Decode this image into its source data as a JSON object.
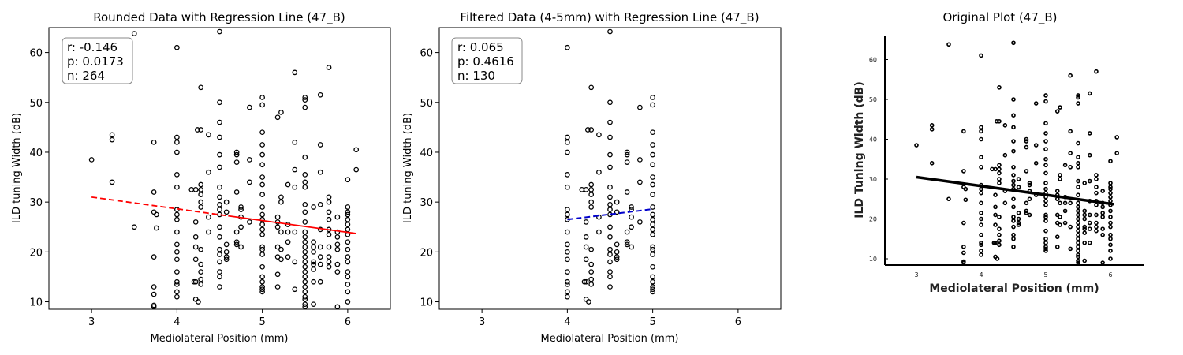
{
  "chart_data": [
    {
      "type": "scatter",
      "title": "Rounded Data with Regression Line (47_B)",
      "xlabel": "Mediolateral Position (mm)",
      "ylabel": "ILD tuning Width (dB)",
      "xlim": [
        2.5,
        6.5
      ],
      "ylim": [
        8.5,
        65
      ],
      "xticks": [
        3,
        4,
        5,
        6
      ],
      "yticks": [
        10,
        20,
        30,
        40,
        50,
        60
      ],
      "grid": false,
      "stats": [
        "r: -0.146",
        "p: 0.0173",
        "n: 264"
      ],
      "regression": {
        "x": [
          3,
          6.1
        ],
        "y": [
          31.0,
          23.7
        ],
        "color": "#ff0000",
        "style": "dashed-then-solid"
      },
      "points": [
        [
          3.0,
          38.5
        ],
        [
          3.24,
          43.5
        ],
        [
          3.24,
          42.5
        ],
        [
          3.24,
          34.0
        ],
        [
          3.5,
          63.8
        ],
        [
          3.5,
          25.0
        ],
        [
          3.73,
          42.0
        ],
        [
          3.73,
          32.0
        ],
        [
          3.73,
          28.0
        ],
        [
          3.73,
          19.0
        ],
        [
          3.73,
          13.0
        ],
        [
          3.73,
          11.5
        ],
        [
          3.73,
          9.3
        ],
        [
          3.73,
          9.0
        ],
        [
          3.76,
          27.5
        ],
        [
          3.76,
          24.8
        ],
        [
          4.0,
          61.0
        ],
        [
          4.0,
          43.0
        ],
        [
          4.0,
          42.0
        ],
        [
          4.0,
          40.0
        ],
        [
          4.0,
          35.5
        ],
        [
          4.0,
          33.0
        ],
        [
          4.0,
          28.5
        ],
        [
          4.0,
          27.5
        ],
        [
          4.0,
          26.5
        ],
        [
          4.0,
          24.0
        ],
        [
          4.0,
          21.5
        ],
        [
          4.0,
          20.0
        ],
        [
          4.0,
          18.5
        ],
        [
          4.0,
          16.0
        ],
        [
          4.0,
          14.0
        ],
        [
          4.0,
          13.5
        ],
        [
          4.0,
          12.0
        ],
        [
          4.0,
          11.0
        ],
        [
          4.17,
          32.5
        ],
        [
          4.2,
          14.0
        ],
        [
          4.22,
          32.5
        ],
        [
          4.22,
          26.0
        ],
        [
          4.22,
          23.0
        ],
        [
          4.22,
          21.0
        ],
        [
          4.22,
          18.5
        ],
        [
          4.22,
          14.0
        ],
        [
          4.22,
          10.5
        ],
        [
          4.24,
          44.5
        ],
        [
          4.25,
          10.0
        ],
        [
          4.28,
          53.0
        ],
        [
          4.28,
          44.5
        ],
        [
          4.28,
          33.5
        ],
        [
          4.28,
          32.5
        ],
        [
          4.28,
          31.5
        ],
        [
          4.28,
          30.0
        ],
        [
          4.28,
          29.0
        ],
        [
          4.28,
          20.5
        ],
        [
          4.28,
          17.5
        ],
        [
          4.28,
          16.0
        ],
        [
          4.28,
          14.5
        ],
        [
          4.28,
          13.5
        ],
        [
          4.37,
          43.5
        ],
        [
          4.37,
          36.0
        ],
        [
          4.37,
          27.0
        ],
        [
          4.37,
          24.0
        ],
        [
          4.5,
          64.2
        ],
        [
          4.5,
          50.0
        ],
        [
          4.5,
          46.0
        ],
        [
          4.5,
          43.0
        ],
        [
          4.5,
          39.5
        ],
        [
          4.5,
          37.0
        ],
        [
          4.5,
          33.0
        ],
        [
          4.5,
          31.0
        ],
        [
          4.5,
          29.5
        ],
        [
          4.5,
          28.5
        ],
        [
          4.5,
          27.5
        ],
        [
          4.5,
          25.0
        ],
        [
          4.5,
          23.0
        ],
        [
          4.5,
          20.5
        ],
        [
          4.5,
          19.5
        ],
        [
          4.5,
          18.0
        ],
        [
          4.5,
          16.0
        ],
        [
          4.5,
          15.0
        ],
        [
          4.5,
          13.0
        ],
        [
          4.58,
          30.0
        ],
        [
          4.58,
          28.0
        ],
        [
          4.58,
          21.5
        ],
        [
          4.58,
          20.0
        ],
        [
          4.58,
          19.0
        ],
        [
          4.58,
          18.5
        ],
        [
          4.7,
          40.0
        ],
        [
          4.7,
          39.5
        ],
        [
          4.7,
          38.0
        ],
        [
          4.7,
          32.0
        ],
        [
          4.7,
          24.0
        ],
        [
          4.7,
          22.0
        ],
        [
          4.7,
          21.5
        ],
        [
          4.75,
          29.0
        ],
        [
          4.75,
          28.5
        ],
        [
          4.75,
          27.0
        ],
        [
          4.75,
          25.0
        ],
        [
          4.75,
          21.0
        ],
        [
          4.85,
          49.0
        ],
        [
          4.85,
          38.5
        ],
        [
          4.85,
          34.0
        ],
        [
          4.85,
          26.0
        ],
        [
          5.0,
          51.0
        ],
        [
          5.0,
          49.5
        ],
        [
          5.0,
          44.0
        ],
        [
          5.0,
          41.5
        ],
        [
          5.0,
          39.5
        ],
        [
          5.0,
          37.5
        ],
        [
          5.0,
          35.0
        ],
        [
          5.0,
          33.5
        ],
        [
          5.0,
          31.5
        ],
        [
          5.0,
          29.0
        ],
        [
          5.0,
          27.5
        ],
        [
          5.0,
          26.5
        ],
        [
          5.0,
          25.5
        ],
        [
          5.0,
          24.5
        ],
        [
          5.0,
          23.5
        ],
        [
          5.0,
          21.0
        ],
        [
          5.0,
          20.5
        ],
        [
          5.0,
          19.5
        ],
        [
          5.0,
          17.0
        ],
        [
          5.0,
          15.0
        ],
        [
          5.0,
          14.0
        ],
        [
          5.0,
          13.0
        ],
        [
          5.0,
          12.5
        ],
        [
          5.0,
          12.0
        ],
        [
          5.18,
          47.0
        ],
        [
          5.18,
          27.0
        ],
        [
          5.18,
          26.0
        ],
        [
          5.18,
          25.0
        ],
        [
          5.18,
          21.0
        ],
        [
          5.18,
          19.0
        ],
        [
          5.18,
          15.5
        ],
        [
          5.18,
          13.0
        ],
        [
          5.22,
          48.0
        ],
        [
          5.22,
          31.0
        ],
        [
          5.22,
          30.0
        ],
        [
          5.22,
          24.0
        ],
        [
          5.22,
          20.5
        ],
        [
          5.22,
          18.5
        ],
        [
          5.3,
          33.5
        ],
        [
          5.3,
          25.5
        ],
        [
          5.3,
          24.0
        ],
        [
          5.3,
          22.0
        ],
        [
          5.3,
          19.0
        ],
        [
          5.38,
          56.0
        ],
        [
          5.38,
          42.0
        ],
        [
          5.38,
          36.5
        ],
        [
          5.38,
          33.0
        ],
        [
          5.38,
          24.0
        ],
        [
          5.38,
          18.0
        ],
        [
          5.38,
          12.5
        ],
        [
          5.5,
          51.0
        ],
        [
          5.5,
          50.5
        ],
        [
          5.5,
          49.0
        ],
        [
          5.5,
          39.0
        ],
        [
          5.5,
          35.5
        ],
        [
          5.5,
          34.0
        ],
        [
          5.5,
          33.0
        ],
        [
          5.5,
          29.5
        ],
        [
          5.5,
          28.0
        ],
        [
          5.5,
          26.0
        ],
        [
          5.5,
          24.0
        ],
        [
          5.5,
          23.0
        ],
        [
          5.5,
          22.0
        ],
        [
          5.5,
          21.0
        ],
        [
          5.5,
          20.0
        ],
        [
          5.5,
          19.0
        ],
        [
          5.5,
          18.0
        ],
        [
          5.5,
          17.0
        ],
        [
          5.5,
          16.0
        ],
        [
          5.5,
          15.0
        ],
        [
          5.5,
          14.0
        ],
        [
          5.5,
          13.0
        ],
        [
          5.5,
          12.0
        ],
        [
          5.5,
          11.0
        ],
        [
          5.5,
          10.5
        ],
        [
          5.5,
          9.5
        ],
        [
          5.5,
          9.0
        ],
        [
          5.6,
          29.0
        ],
        [
          5.6,
          22.0
        ],
        [
          5.6,
          21.0
        ],
        [
          5.6,
          20.0
        ],
        [
          5.6,
          18.0
        ],
        [
          5.6,
          17.5
        ],
        [
          5.6,
          16.5
        ],
        [
          5.6,
          14.0
        ],
        [
          5.6,
          9.5
        ],
        [
          5.68,
          51.5
        ],
        [
          5.68,
          41.5
        ],
        [
          5.68,
          36.0
        ],
        [
          5.68,
          29.5
        ],
        [
          5.68,
          24.5
        ],
        [
          5.68,
          21.0
        ],
        [
          5.68,
          19.0
        ],
        [
          5.68,
          17.5
        ],
        [
          5.68,
          14.0
        ],
        [
          5.78,
          57.0
        ],
        [
          5.78,
          31.0
        ],
        [
          5.78,
          30.0
        ],
        [
          5.78,
          28.0
        ],
        [
          5.78,
          26.5
        ],
        [
          5.78,
          24.5
        ],
        [
          5.78,
          23.5
        ],
        [
          5.78,
          21.0
        ],
        [
          5.78,
          19.0
        ],
        [
          5.78,
          18.0
        ],
        [
          5.78,
          17.0
        ],
        [
          5.88,
          27.0
        ],
        [
          5.88,
          24.0
        ],
        [
          5.88,
          23.0
        ],
        [
          5.88,
          21.5
        ],
        [
          5.88,
          20.5
        ],
        [
          5.88,
          17.5
        ],
        [
          5.88,
          16.0
        ],
        [
          5.88,
          9.0
        ],
        [
          6.0,
          34.5
        ],
        [
          6.0,
          29.0
        ],
        [
          6.0,
          28.0
        ],
        [
          6.0,
          27.5
        ],
        [
          6.0,
          26.5
        ],
        [
          6.0,
          25.5
        ],
        [
          6.0,
          24.5
        ],
        [
          6.0,
          23.5
        ],
        [
          6.0,
          22.0
        ],
        [
          6.0,
          20.5
        ],
        [
          6.0,
          19.0
        ],
        [
          6.0,
          18.0
        ],
        [
          6.0,
          16.0
        ],
        [
          6.0,
          15.0
        ],
        [
          6.0,
          13.5
        ],
        [
          6.0,
          12.0
        ],
        [
          6.0,
          10.0
        ],
        [
          6.1,
          40.5
        ],
        [
          6.1,
          36.5
        ]
      ]
    },
    {
      "type": "scatter",
      "title": "Filtered Data (4-5mm) with Regression Line (47_B)",
      "xlabel": "Mediolateral Position (mm)",
      "ylabel": "ILD tuning Width (dB)",
      "xlim": [
        2.5,
        6.5
      ],
      "ylim": [
        8.5,
        65
      ],
      "xticks": [
        3,
        4,
        5,
        6
      ],
      "yticks": [
        10,
        20,
        30,
        40,
        50,
        60
      ],
      "grid": false,
      "stats": [
        "r: 0.065",
        "p: 0.4616",
        "n: 130"
      ],
      "regression": {
        "x": [
          4,
          5
        ],
        "y": [
          26.5,
          28.6
        ],
        "color": "#0000cc",
        "style": "dashed"
      },
      "points_note": "subset of panel 1 with 4 <= x <= 5"
    },
    {
      "type": "image",
      "title": "Original Plot (47_B)",
      "xlabel": "Mediolateral Position (mm)",
      "ylabel": "ILD Tuning Width (dB)",
      "xticks": [
        3,
        4,
        5,
        6
      ],
      "yticks": [
        10,
        20,
        30,
        40,
        50,
        60
      ]
    }
  ]
}
